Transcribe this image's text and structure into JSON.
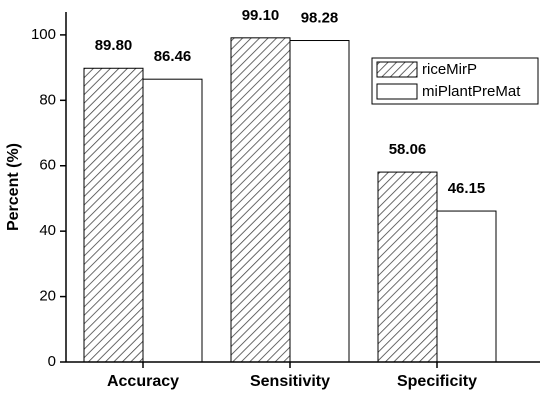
{
  "chart_data": {
    "type": "bar",
    "ylabel": "Percent (%)",
    "categories": [
      "Accuracy",
      "Sensitivity",
      "Specificity"
    ],
    "series": [
      {
        "name": "riceMirP",
        "color": "#444444",
        "hatch": true,
        "values": [
          89.8,
          99.1,
          58.06
        ],
        "value_labels": [
          "89.80",
          "99.10",
          "58.06"
        ]
      },
      {
        "name": "miPlantPreMat",
        "color": "#ffffff",
        "hatch": false,
        "values": [
          86.46,
          98.28,
          46.15
        ],
        "value_labels": [
          "86.46",
          "98.28",
          "46.15"
        ]
      }
    ],
    "ylim": [
      0,
      107
    ],
    "yticks": [
      0,
      20,
      40,
      60,
      80,
      100
    ],
    "legend": "upper right"
  }
}
